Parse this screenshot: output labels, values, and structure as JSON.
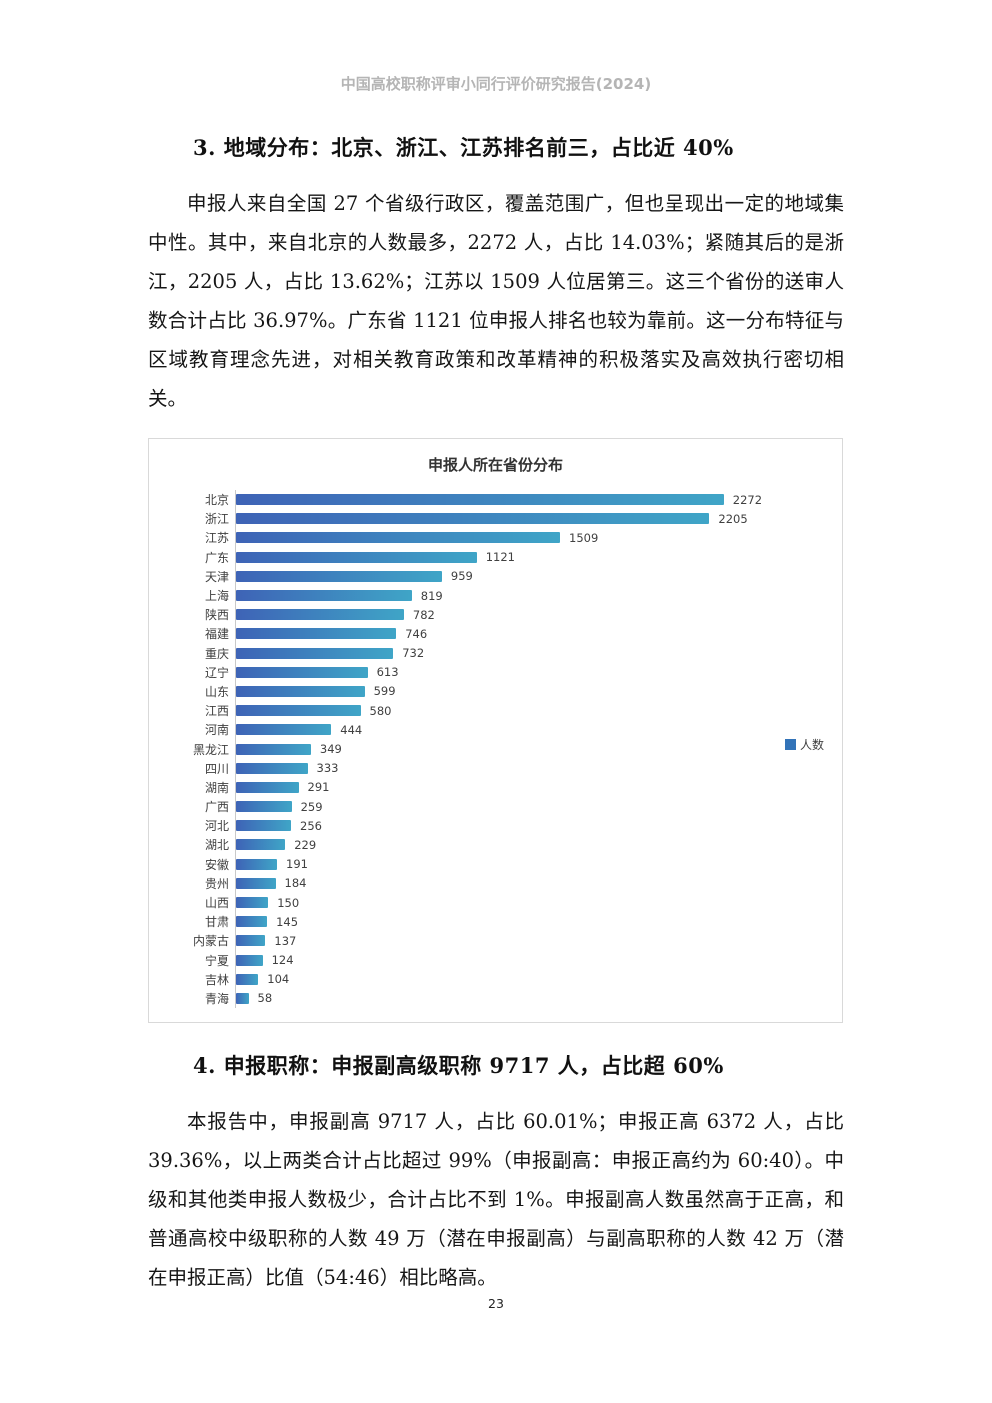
{
  "page": {
    "header": "中国高校职称评审小同行评价研究报告(2024)",
    "page_number": "23"
  },
  "section3": {
    "heading": "3. 地域分布：北京、浙江、江苏排名前三，占比近 40%",
    "paragraph": "申报人来自全国 27 个省级行政区，覆盖范围广，但也呈现出一定的地域集中性。其中，来自北京的人数最多，2272 人，占比 14.03%；紧随其后的是浙江，2205 人，占比 13.62%；江苏以 1509 人位居第三。这三个省份的送审人数合计占比 36.97%。广东省 1121 位申报人排名也较为靠前。这一分布特征与区域教育理念先进，对相关教育政策和改革精神的积极落实及高效执行密切相关。"
  },
  "section4": {
    "heading": "4. 申报职称：申报副高级职称 9717 人，占比超 60%",
    "paragraph": "本报告中，申报副高 9717 人，占比 60.01%；申报正高 6372 人，占比 39.36%，以上两类合计占比超过 99%（申报副高：申报正高约为 60:40）。中级和其他类申报人数极少，合计占比不到 1%。申报副高人数虽然高于正高，和普通高校中级职称的人数 49 万（潜在申报副高）与副高职称的人数 42 万（潜在申报正高）比值（54:46）相比略高。"
  },
  "chart_data": {
    "type": "bar",
    "orientation": "horizontal",
    "title": "申报人所在省份分布",
    "legend": [
      "人数"
    ],
    "legend_position": "right",
    "data_labels": true,
    "categories": [
      "北京",
      "浙江",
      "江苏",
      "广东",
      "天津",
      "上海",
      "陕西",
      "福建",
      "重庆",
      "辽宁",
      "山东",
      "江西",
      "河南",
      "黑龙江",
      "四川",
      "湖南",
      "广西",
      "河北",
      "湖北",
      "安徽",
      "贵州",
      "山西",
      "甘肃",
      "内蒙古",
      "宁夏",
      "吉林",
      "青海"
    ],
    "values": [
      2272,
      2205,
      1509,
      1121,
      959,
      819,
      782,
      746,
      732,
      613,
      599,
      580,
      444,
      349,
      333,
      291,
      259,
      256,
      229,
      191,
      184,
      150,
      145,
      137,
      124,
      104,
      58
    ],
    "xlim": [
      0,
      2400
    ],
    "grid": false,
    "colors": {
      "bar_gradient_start": "#3e63b6",
      "bar_gradient_end": "#3fa5c7",
      "legend_swatch": "#3273b8",
      "axis_line": "#c9c9c9",
      "border": "#d9d9d9",
      "title_text": "#333333",
      "label_text": "#3f3f3f"
    }
  }
}
